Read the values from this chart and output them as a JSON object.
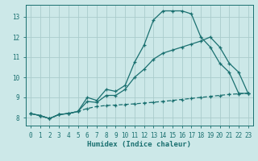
{
  "title": "",
  "xlabel": "Humidex (Indice chaleur)",
  "bg_color": "#cce8e8",
  "line_color": "#1a7070",
  "grid_color": "#aacccc",
  "xlim": [
    -0.5,
    23.5
  ],
  "ylim": [
    7.6,
    13.6
  ],
  "xticks": [
    0,
    1,
    2,
    3,
    4,
    5,
    6,
    7,
    8,
    9,
    10,
    11,
    12,
    13,
    14,
    15,
    16,
    17,
    18,
    19,
    20,
    21,
    22,
    23
  ],
  "yticks": [
    8,
    9,
    10,
    11,
    12,
    13
  ],
  "line1_x": [
    0,
    1,
    2,
    3,
    4,
    5,
    6,
    7,
    8,
    9,
    10,
    11,
    12,
    13,
    14,
    15,
    16,
    17,
    18,
    19,
    20,
    21,
    22,
    23
  ],
  "line1_y": [
    8.2,
    8.1,
    7.95,
    8.15,
    8.2,
    8.3,
    9.0,
    8.85,
    9.4,
    9.3,
    9.6,
    10.75,
    11.6,
    12.85,
    13.3,
    13.3,
    13.3,
    13.15,
    12.0,
    11.5,
    10.7,
    10.25,
    9.2,
    9.2
  ],
  "line2_x": [
    0,
    1,
    2,
    3,
    4,
    5,
    6,
    7,
    8,
    9,
    10,
    11,
    12,
    13,
    14,
    15,
    16,
    17,
    18,
    19,
    20,
    21,
    22,
    23
  ],
  "line2_y": [
    8.2,
    8.1,
    7.95,
    8.15,
    8.2,
    8.3,
    8.8,
    8.75,
    9.1,
    9.1,
    9.4,
    10.0,
    10.4,
    10.9,
    11.2,
    11.35,
    11.5,
    11.65,
    11.8,
    12.0,
    11.5,
    10.7,
    10.25,
    9.2
  ],
  "line3_x": [
    0,
    1,
    2,
    3,
    4,
    5,
    6,
    7,
    8,
    9,
    10,
    11,
    12,
    13,
    14,
    15,
    16,
    17,
    18,
    19,
    20,
    21,
    22,
    23
  ],
  "line3_y": [
    8.2,
    8.1,
    7.95,
    8.15,
    8.2,
    8.3,
    8.45,
    8.55,
    8.6,
    8.62,
    8.65,
    8.68,
    8.72,
    8.76,
    8.8,
    8.85,
    8.9,
    8.95,
    9.0,
    9.05,
    9.1,
    9.15,
    9.18,
    9.2
  ]
}
